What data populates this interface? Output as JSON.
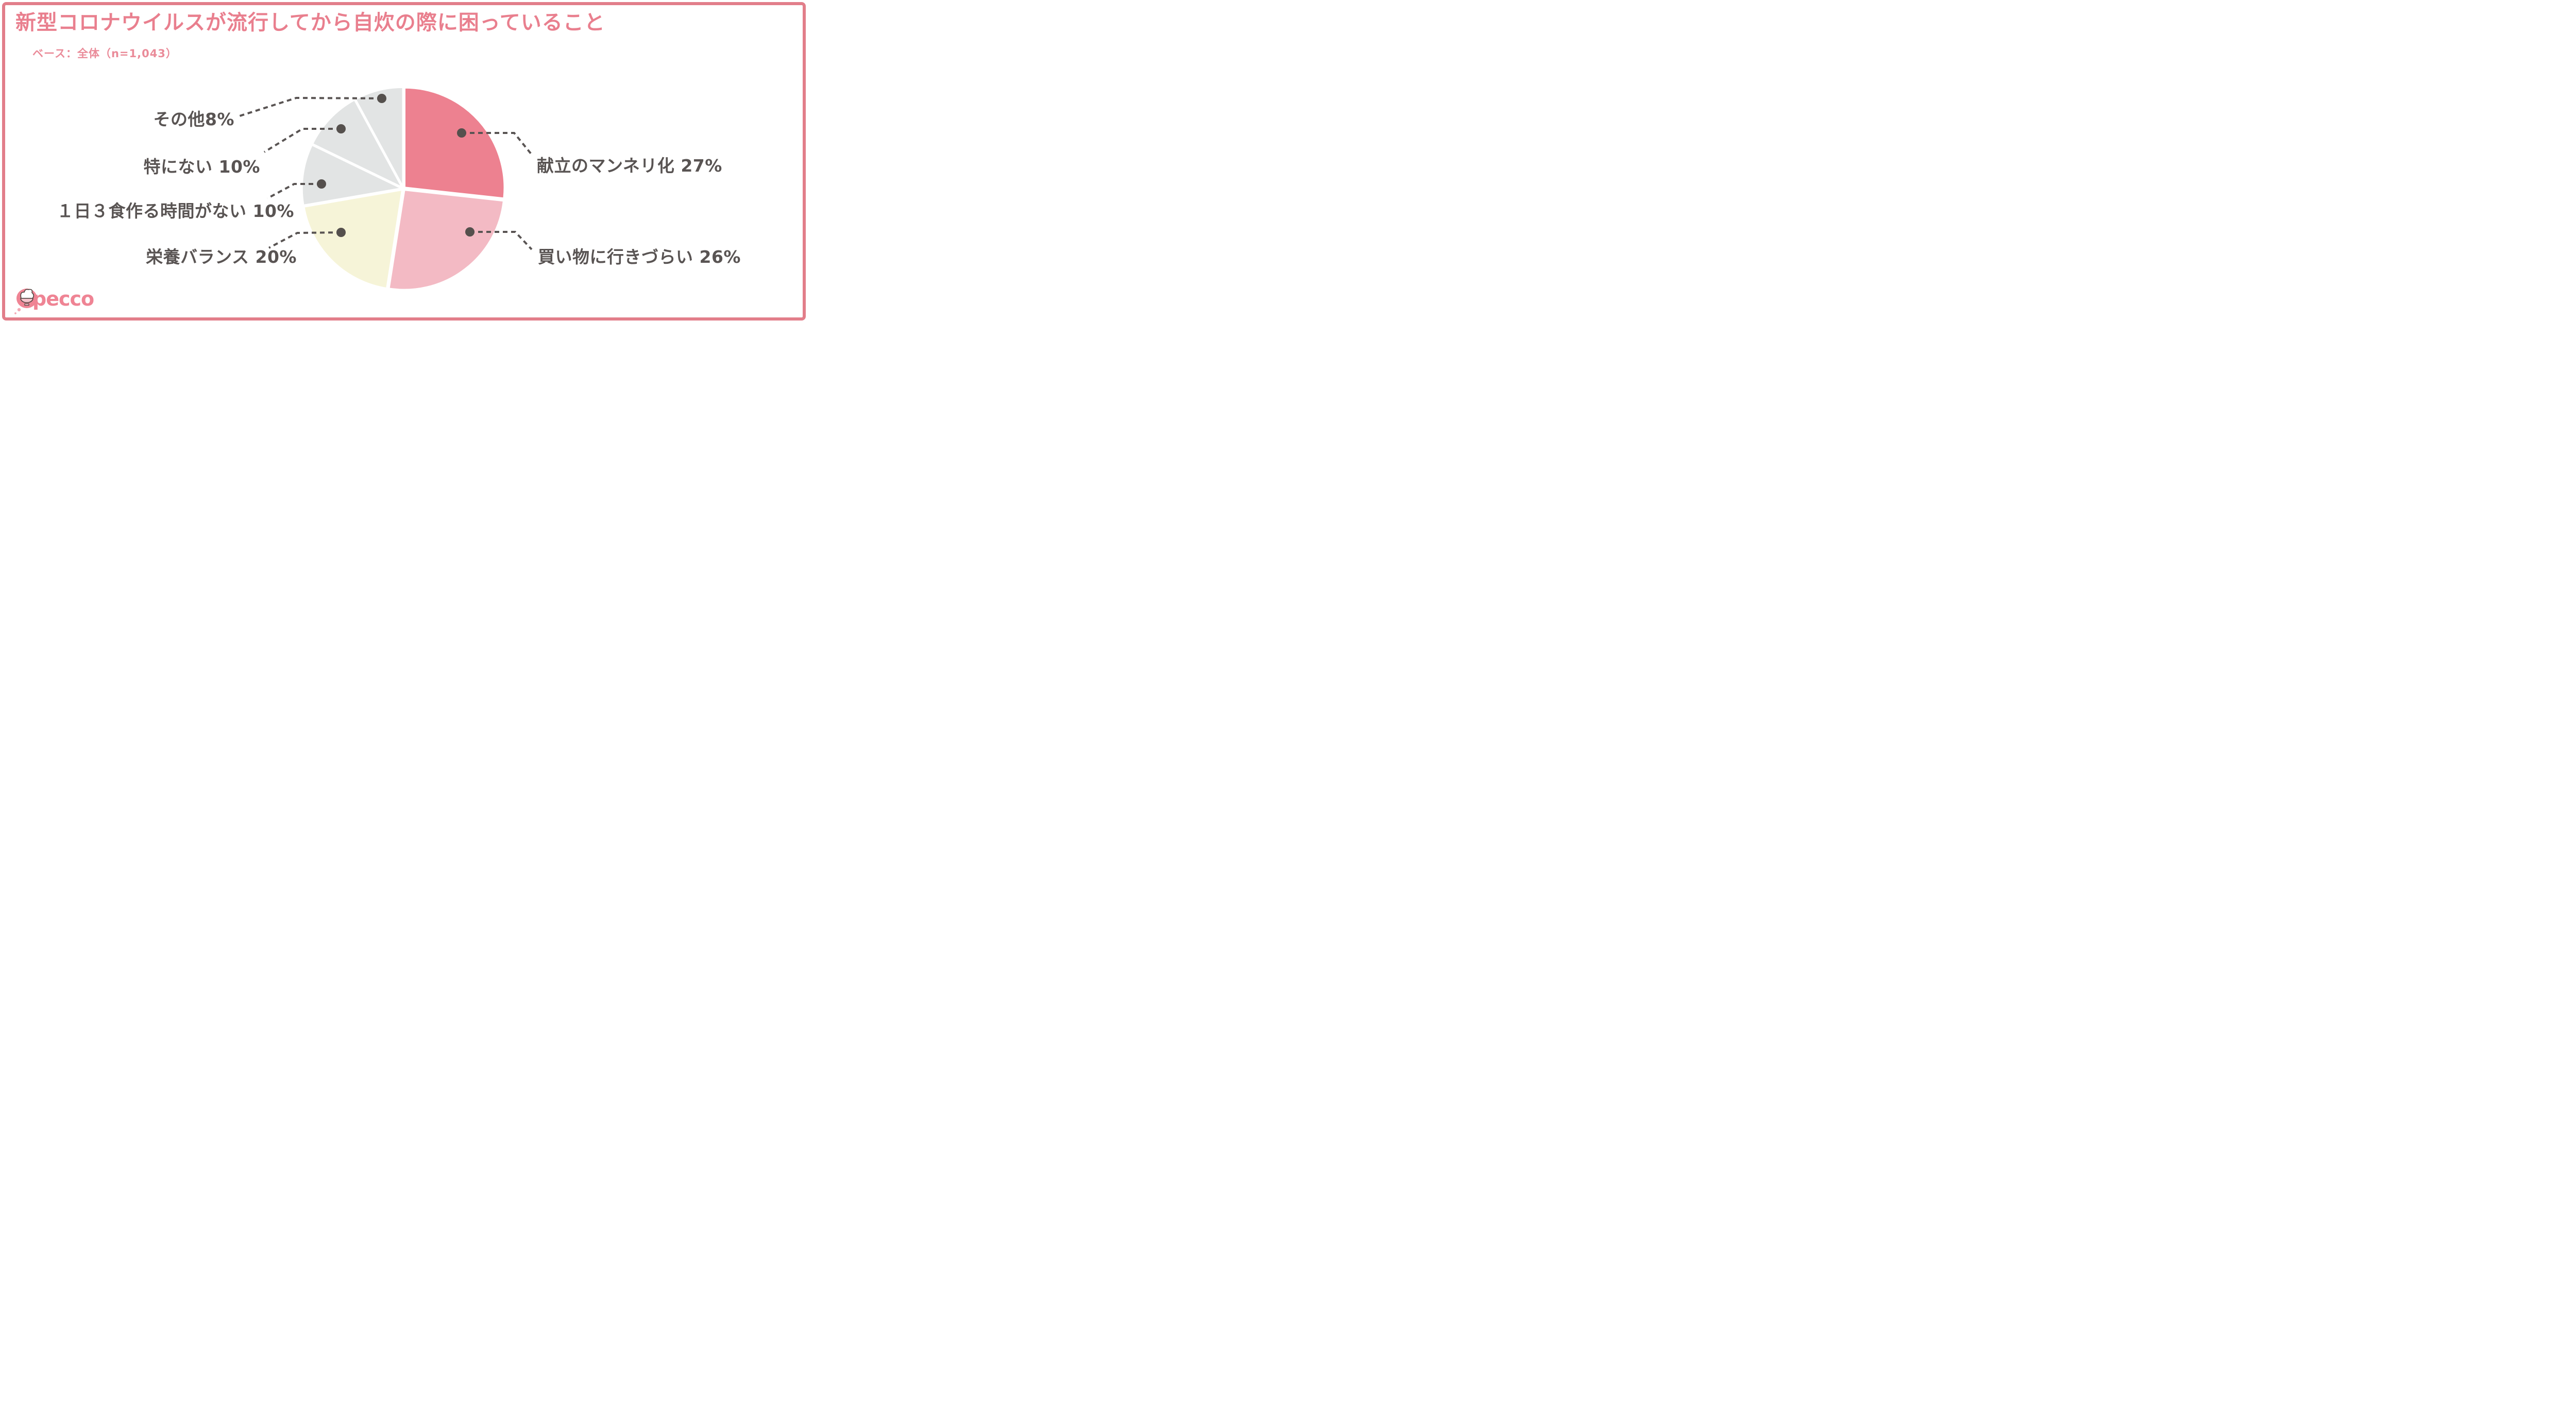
{
  "page": {
    "background": "#ffffff",
    "border_color": "#E27E8A"
  },
  "header": {
    "title": "新型コロナウイルスが流行してから自炊の際に困っていること",
    "subtitle": "ベース：全体（n=1,043）"
  },
  "logo": {
    "text": "pecco",
    "icon": "rice-bowl-icon",
    "color": "#EF8494"
  },
  "chart_data": {
    "type": "pie",
    "title": "新型コロナウイルスが流行してから自炊の際に困っていること",
    "base_note": "ベース：全体（n=1,043）",
    "start_angle_deg": 0,
    "clockwise": true,
    "legend_position": "callouts",
    "callout_line_color": "#595453",
    "callout_dot_color": "#55504D",
    "segments": [
      {
        "label": "献立のマンネリ化",
        "value": 27,
        "display": "献立のマンネリ化 27%",
        "color": "#ED8190"
      },
      {
        "label": "買い物に行きづらい",
        "value": 26,
        "display": "買い物に行きづらい 26%",
        "color": "#F3BAC4"
      },
      {
        "label": "栄養バランス",
        "value": 20,
        "display": "栄養バランス 20%",
        "color": "#F6F4D8"
      },
      {
        "label": "１日３食作る時間がない",
        "value": 10,
        "display": "１日３食作る時間がない 10%",
        "color": "#E2E4E4"
      },
      {
        "label": "特にない",
        "value": 10,
        "display": "特にない 10%",
        "color": "#E2E4E4"
      },
      {
        "label": "その他",
        "value": 8,
        "display": "その他8%",
        "color": "#E2E4E4"
      }
    ]
  }
}
